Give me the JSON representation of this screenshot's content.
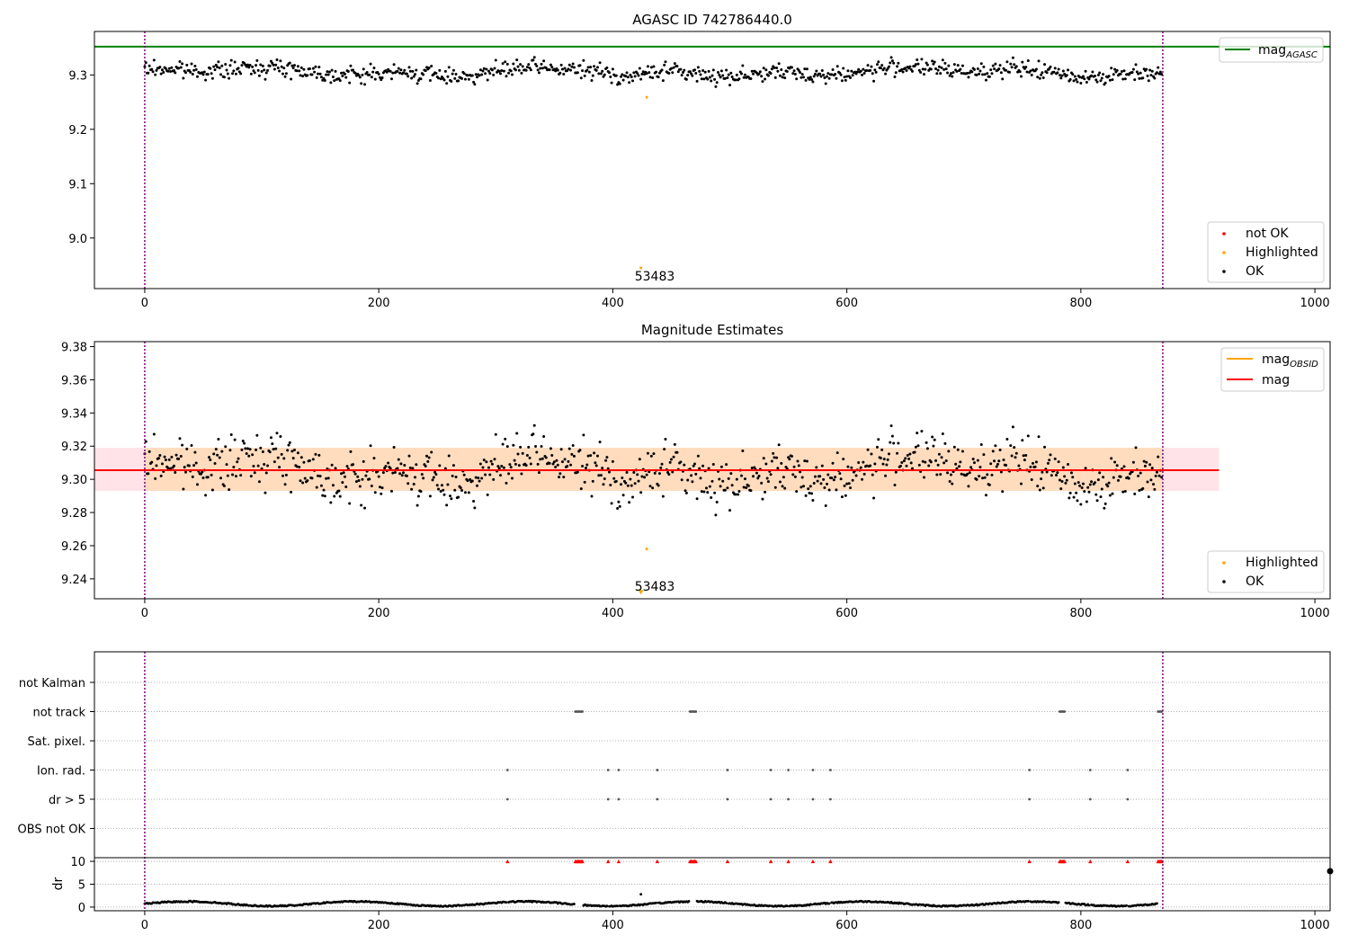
{
  "figure": {
    "panel1_title": "AGASC ID 742786440.0",
    "panel2_title": "Magnitude Estimates"
  },
  "colors": {
    "ok": "#000000",
    "highlighted": "#ffa500",
    "not_ok": "#ff0000",
    "mag_agasc_line": "#008000",
    "mag_line": "#ff0000",
    "mag_obsid_line": "#ffa500",
    "band_fill": "#ffc0cb",
    "band_inner_fill": "#ffdab9",
    "obsid_boundary": "#800080"
  },
  "chart_data": [
    {
      "type": "scatter",
      "title": "AGASC ID 742786440.0",
      "xlabel": "",
      "ylabel": "",
      "xlim": [
        -43,
        1013
      ],
      "ylim": [
        8.907,
        9.38
      ],
      "xticks": [
        "0",
        "200",
        "400",
        "600",
        "800",
        "1000"
      ],
      "yticks": [
        "9.0",
        "9.1",
        "9.2",
        "9.3"
      ],
      "ytick_values": [
        9.0,
        9.1,
        9.2,
        9.3
      ],
      "grid": false,
      "lines": [
        {
          "name": "mag_AGASC",
          "y": 9.352,
          "color": "#008000"
        }
      ],
      "obsid_boundaries_x": [
        0,
        870
      ],
      "series": [
        {
          "name": "not OK",
          "color": "#ff0000",
          "n_points": 0
        },
        {
          "name": "Highlighted",
          "color": "#ffa500",
          "points": [
            [
              429,
              9.259
            ],
            [
              424,
              8.945
            ]
          ]
        },
        {
          "name": "OK",
          "color": "#000000",
          "n_points": 870,
          "x_range": [
            0,
            869
          ],
          "typical_y": [
            9.28,
            9.34
          ],
          "mean_y": 9.306,
          "dip_x_range": [
            380,
            450
          ],
          "dip_min_y": 9.27
        }
      ],
      "annotations": [
        {
          "text": "53483",
          "x": 424,
          "y": 8.945
        }
      ],
      "legend": {
        "upper_right": [
          "mag_AGASC"
        ],
        "lower_right": [
          "not OK",
          "Highlighted",
          "OK"
        ]
      }
    },
    {
      "type": "scatter",
      "title": "Magnitude Estimates",
      "xlabel": "",
      "ylabel": "",
      "xlim": [
        -43,
        1013
      ],
      "ylim": [
        9.228,
        9.383
      ],
      "xticks": [
        "0",
        "200",
        "400",
        "600",
        "800",
        "1000"
      ],
      "yticks": [
        "9.24",
        "9.26",
        "9.28",
        "9.30",
        "9.32",
        "9.34",
        "9.36",
        "9.38"
      ],
      "ytick_values": [
        9.24,
        9.26,
        9.28,
        9.3,
        9.32,
        9.34,
        9.36,
        9.38
      ],
      "grid": false,
      "lines": [
        {
          "name": "mag_OBSID",
          "y": 9.3055,
          "color": "#ffa500",
          "x_range": [
            0,
            870
          ]
        },
        {
          "name": "mag",
          "y": 9.3055,
          "color": "#ff0000",
          "x_range": [
            -43,
            918
          ]
        }
      ],
      "bands": [
        {
          "y_range": [
            9.293,
            9.319
          ],
          "x_range": [
            -43,
            918
          ],
          "color": "#ffc0cb"
        },
        {
          "y_range": [
            9.293,
            9.319
          ],
          "x_range": [
            0,
            870
          ],
          "color": "#ffdab9"
        }
      ],
      "obsid_boundaries_x": [
        0,
        870
      ],
      "series": [
        {
          "name": "Highlighted",
          "color": "#ffa500",
          "points": [
            [
              429,
              9.258
            ],
            [
              424,
              9.23
            ]
          ]
        },
        {
          "name": "OK",
          "color": "#000000",
          "n_points": 870,
          "x_range": [
            0,
            869
          ],
          "typical_y": [
            9.28,
            9.34
          ],
          "mean_y": 9.306,
          "dip_x_range": [
            380,
            450
          ],
          "dip_min_y": 9.268
        }
      ],
      "annotations": [
        {
          "text": "53483",
          "x": 424,
          "y": 9.23
        }
      ],
      "legend": {
        "upper_right": [
          "mag_OBSID",
          "mag"
        ],
        "lower_right": [
          "Highlighted",
          "OK"
        ]
      }
    },
    {
      "type": "scatter",
      "title": "",
      "xlabel": "",
      "ylabel": "",
      "xlim": [
        -43,
        1013
      ],
      "xticks": [
        "0",
        "200",
        "400",
        "600",
        "800",
        "1000"
      ],
      "flag_categories": [
        "not Kalman",
        "not track",
        "Sat. pixel.",
        "Ion. rad.",
        "dr > 5",
        "OBS not OK"
      ],
      "flags": {
        "not Kalman": [],
        "not track": [
          368,
          369,
          370,
          371,
          372,
          373,
          374,
          466,
          467,
          468,
          469,
          470,
          471,
          782,
          783,
          784,
          785,
          786,
          866,
          867,
          868,
          869
        ],
        "Sat. pixel.": [],
        "Ion. rad.": [
          310,
          396,
          405,
          438,
          498,
          535,
          550,
          571,
          586,
          756,
          808,
          840
        ],
        "dr > 5": [
          310,
          396,
          405,
          438,
          498,
          535,
          550,
          571,
          586,
          756,
          808,
          840
        ],
        "OBS not OK": []
      },
      "dr_panel": {
        "ylabel": "dr",
        "yticks": [
          "0",
          "5",
          "10"
        ],
        "ytick_values": [
          0,
          5,
          10
        ],
        "ylim": [
          -0.8,
          10.8
        ],
        "clip_at": 10,
        "clipped_marker_color": "#ff0000",
        "clipped_x": [
          310,
          368,
          369,
          370,
          371,
          372,
          373,
          374,
          396,
          405,
          438,
          466,
          467,
          468,
          469,
          470,
          471,
          498,
          535,
          550,
          571,
          586,
          756,
          782,
          783,
          784,
          785,
          786,
          808,
          840,
          866,
          867,
          868,
          869
        ],
        "typical_dr": [
          0.0,
          1.6
        ],
        "outlier": [
          [
            424,
            2.8
          ]
        ]
      },
      "obsid_boundaries_x": [
        0,
        870
      ]
    }
  ]
}
